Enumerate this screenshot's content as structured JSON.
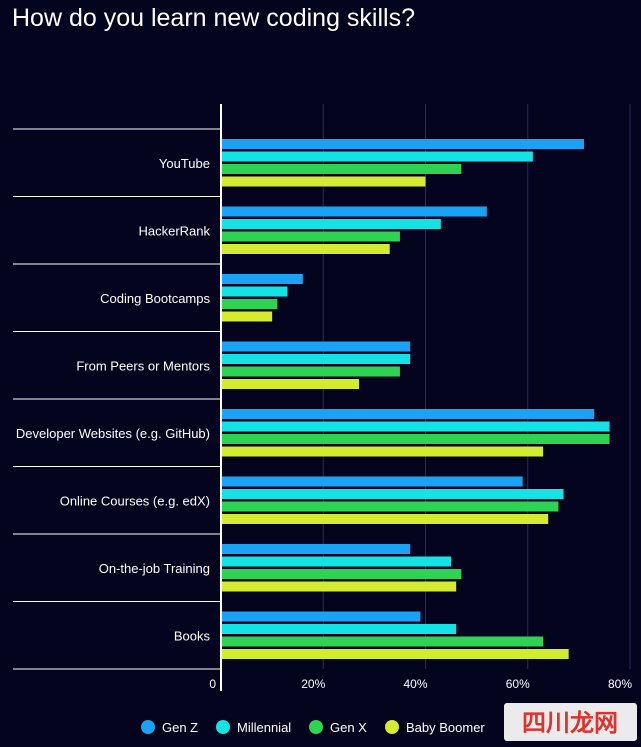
{
  "chart_data": {
    "type": "bar",
    "orientation": "horizontal",
    "title": "How do you learn new coding skills?",
    "categories": [
      "YouTube",
      "HackerRank",
      "Coding Bootcamps",
      "From Peers or Mentors",
      "Developer Websites (e.g. GitHub)",
      "Online Courses (e.g. edX)",
      "On-the-job Training",
      "Books"
    ],
    "series": [
      {
        "name": "Gen Z",
        "color": "#1aa3f5",
        "values": [
          71,
          52,
          16,
          37,
          73,
          59,
          37,
          39
        ]
      },
      {
        "name": "Millennial",
        "color": "#14e3e6",
        "values": [
          61,
          43,
          13,
          37,
          76,
          67,
          45,
          46
        ]
      },
      {
        "name": "Gen X",
        "color": "#2fd352",
        "values": [
          47,
          35,
          11,
          35,
          76,
          66,
          47,
          63
        ]
      },
      {
        "name": "Baby Boomer",
        "color": "#d4ec2f",
        "values": [
          40,
          33,
          10,
          27,
          63,
          64,
          46,
          68
        ]
      }
    ],
    "xlim": [
      0,
      80
    ],
    "xticks": [
      "0",
      "20%",
      "40%",
      "60%",
      "80%"
    ],
    "xtick_values": [
      0,
      20,
      40,
      60,
      80
    ],
    "grid": true,
    "legend_position": "bottom"
  },
  "watermark": {
    "text": "四川龙网"
  }
}
